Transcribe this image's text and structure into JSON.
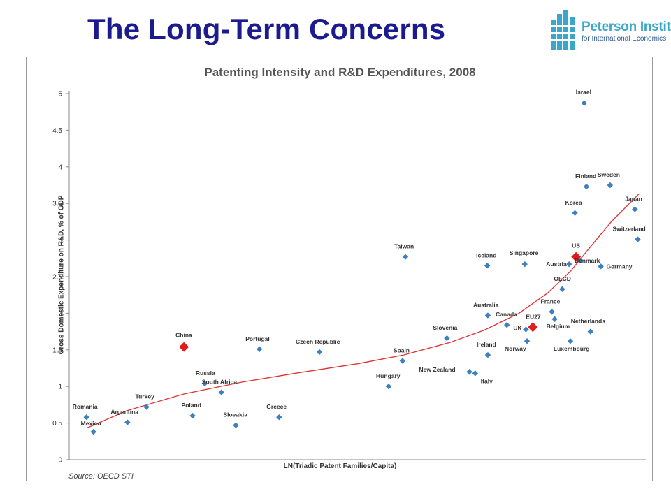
{
  "slide": {
    "title": "The Long-Term Concerns"
  },
  "logo": {
    "name": "Peterson Institute",
    "subtitle": "for International Economics",
    "colors": {
      "bars": "#3aa6c9",
      "text": "#2b5a8f"
    }
  },
  "colors": {
    "title": "#1b1b8f",
    "points": "#3d7fc1",
    "highlight": "#e01c1c",
    "trend": "#e03030"
  },
  "chart_data": {
    "type": "scatter",
    "title": "Patenting Intensity and R&D Expenditures, 2008",
    "xlabel": "LN(Triadic Patent Families/Capita)",
    "ylabel": "Gross Domestic Expenditure on R&D, % of GDP",
    "source": "Source: OECD STI",
    "ylim": [
      0,
      5
    ],
    "y_ticks": [
      "0",
      "0.5",
      "1",
      "1.5",
      "2",
      "2.5",
      "3",
      "3.5",
      "4",
      "4.5",
      "5"
    ],
    "xlim": [
      0,
      100
    ],
    "x_axis_note": "x values on an arbitrary 0–100 scale (no x tick labels printed)",
    "grid": false,
    "legend": "none",
    "points": [
      {
        "label": "Israel",
        "x": 89.3,
        "y": 4.87
      },
      {
        "label": "Finland",
        "x": 89.7,
        "y": 3.73
      },
      {
        "label": "Sweden",
        "x": 93.8,
        "y": 3.75
      },
      {
        "label": "Japan",
        "x": 98.1,
        "y": 3.42
      },
      {
        "label": "Korea",
        "x": 87.7,
        "y": 3.37
      },
      {
        "label": "Switzerland",
        "x": 98.6,
        "y": 3.01
      },
      {
        "label": "US",
        "x": 87.9,
        "y": 2.77,
        "highlight": true
      },
      {
        "label": "Austria",
        "x": 86.7,
        "y": 2.67
      },
      {
        "label": "Denmark",
        "x": 88.6,
        "y": 2.72
      },
      {
        "label": "Germany",
        "x": 92.2,
        "y": 2.64
      },
      {
        "label": "OECD",
        "x": 85.5,
        "y": 2.33
      },
      {
        "label": "France",
        "x": 83.7,
        "y": 2.02
      },
      {
        "label": "Belgium",
        "x": 84.2,
        "y": 1.92
      },
      {
        "label": "Netherlands",
        "x": 90.4,
        "y": 1.75
      },
      {
        "label": "Luxembourg",
        "x": 86.9,
        "y": 1.62
      },
      {
        "label": "EU27",
        "x": 80.4,
        "y": 1.81,
        "highlight": true
      },
      {
        "label": "UK",
        "x": 79.2,
        "y": 1.78
      },
      {
        "label": "Norway",
        "x": 79.4,
        "y": 1.62
      },
      {
        "label": "Canada",
        "x": 75.9,
        "y": 1.84
      },
      {
        "label": "Australia",
        "x": 72.6,
        "y": 1.97
      },
      {
        "label": "Iceland",
        "x": 72.5,
        "y": 2.65
      },
      {
        "label": "Singapore",
        "x": 79.0,
        "y": 2.67
      },
      {
        "label": "Ireland",
        "x": 72.6,
        "y": 1.43
      },
      {
        "label": "New Zealand",
        "x": 69.4,
        "y": 1.2
      },
      {
        "label": "Italy",
        "x": 70.4,
        "y": 1.18
      },
      {
        "label": "Slovenia",
        "x": 65.5,
        "y": 1.66
      },
      {
        "label": "Taiwan",
        "x": 58.3,
        "y": 2.77
      },
      {
        "label": "Spain",
        "x": 57.8,
        "y": 1.35
      },
      {
        "label": "Hungary",
        "x": 55.4,
        "y": 1.0
      },
      {
        "label": "Czech Republic",
        "x": 43.4,
        "y": 1.47
      },
      {
        "label": "Portugal",
        "x": 33.0,
        "y": 1.51
      },
      {
        "label": "China",
        "x": 19.9,
        "y": 1.54,
        "highlight": true
      },
      {
        "label": "Russia",
        "x": 23.5,
        "y": 1.04
      },
      {
        "label": "South Africa",
        "x": 26.4,
        "y": 0.92
      },
      {
        "label": "Poland",
        "x": 21.4,
        "y": 0.6
      },
      {
        "label": "Slovakia",
        "x": 28.9,
        "y": 0.47
      },
      {
        "label": "Greece",
        "x": 36.4,
        "y": 0.58
      },
      {
        "label": "Turkey",
        "x": 13.4,
        "y": 0.72
      },
      {
        "label": "Argentina",
        "x": 10.1,
        "y": 0.51
      },
      {
        "label": "Romania",
        "x": 3.0,
        "y": 0.58
      },
      {
        "label": "Mexico",
        "x": 4.2,
        "y": 0.38
      }
    ],
    "trendline": {
      "type": "polynomial",
      "x": [
        3,
        10,
        20,
        30,
        40,
        50,
        58,
        66,
        72,
        78,
        83,
        87,
        90,
        94,
        98.8
      ],
      "y": [
        0.43,
        0.67,
        0.9,
        1.06,
        1.19,
        1.31,
        1.43,
        1.6,
        1.77,
        2.0,
        2.28,
        2.58,
        2.87,
        3.25,
        3.63
      ]
    }
  }
}
